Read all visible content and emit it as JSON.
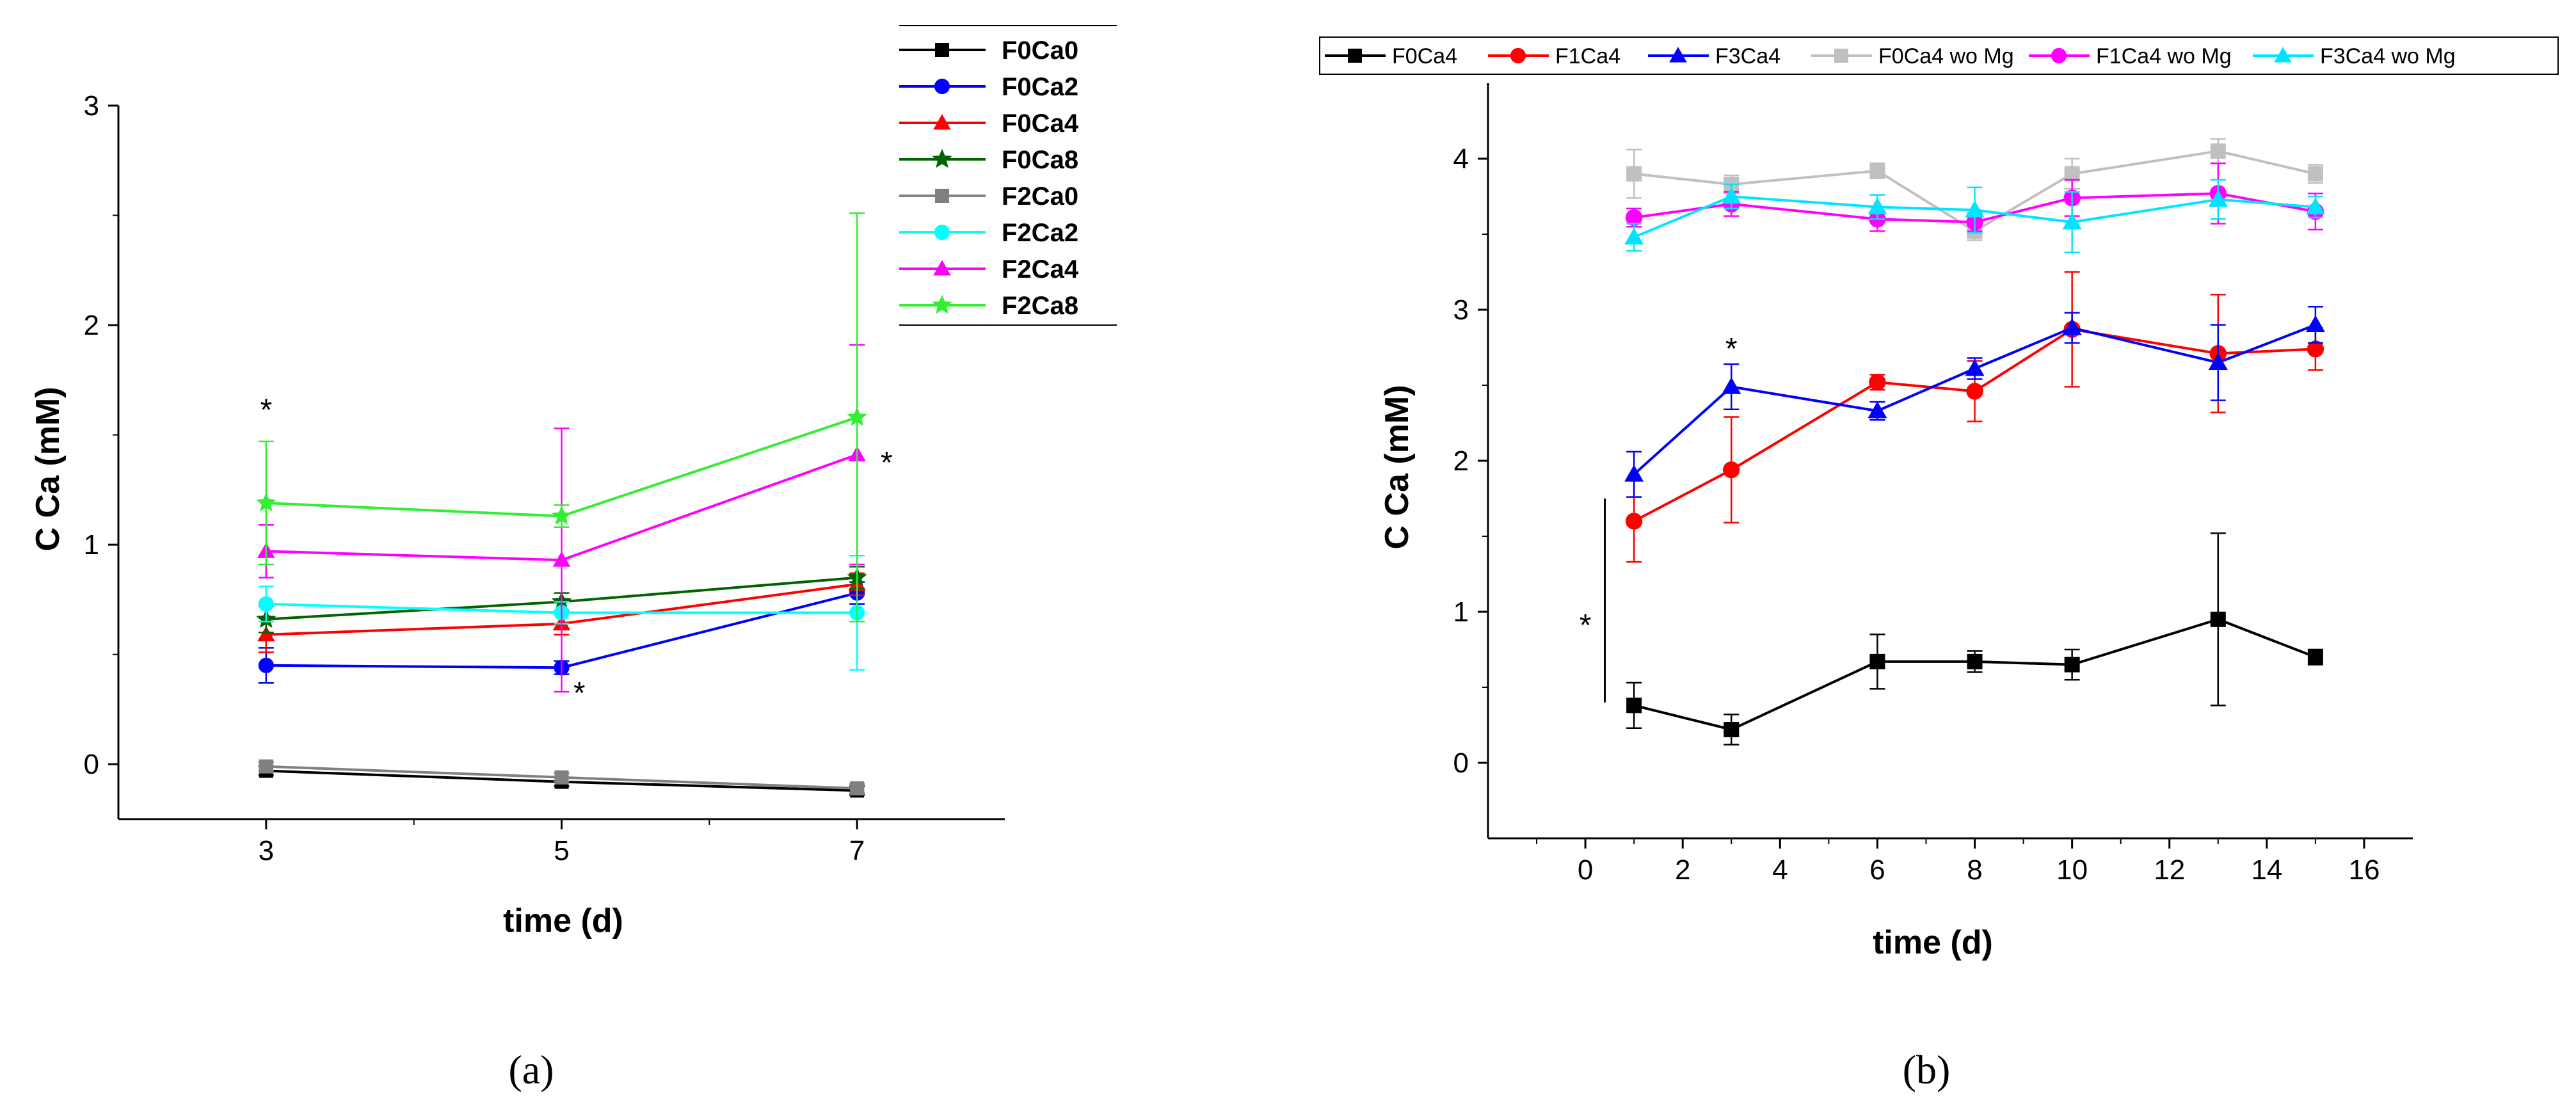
{
  "panels": [
    {
      "id": "a",
      "label": "(a)",
      "chart_data": {
        "type": "line",
        "xlabel": "time (d)",
        "ylabel": "C Ca (mM)",
        "xlim": [
          2,
          8
        ],
        "ylim": [
          -0.25,
          3
        ],
        "xticks": [
          3,
          5,
          7
        ],
        "yticks": [
          0,
          1,
          2,
          3
        ],
        "legend_position": "top-right",
        "series": [
          {
            "name": "F0Ca0",
            "color": "#000000",
            "marker": "square",
            "x": [
              3,
              5,
              7
            ],
            "y": [
              -0.03,
              -0.08,
              -0.12
            ],
            "err": [
              0.02,
              0.02,
              0.02
            ]
          },
          {
            "name": "F0Ca2",
            "color": "#0000ff",
            "marker": "circle",
            "x": [
              3,
              5,
              7
            ],
            "y": [
              0.45,
              0.44,
              0.78
            ],
            "err": [
              0.08,
              0.03,
              0.05
            ]
          },
          {
            "name": "F0Ca4",
            "color": "#ff0000",
            "marker": "triangle",
            "x": [
              3,
              5,
              7
            ],
            "y": [
              0.59,
              0.64,
              0.82
            ],
            "err": [
              0.08,
              0.05,
              0.05
            ]
          },
          {
            "name": "F0Ca8",
            "color": "#006400",
            "marker": "star",
            "x": [
              3,
              5,
              7
            ],
            "y": [
              0.66,
              0.74,
              0.85
            ],
            "err": [
              0.06,
              0.04,
              0.05
            ]
          },
          {
            "name": "F2Ca0",
            "color": "#808080",
            "marker": "square",
            "x": [
              3,
              5,
              7
            ],
            "y": [
              -0.01,
              -0.06,
              -0.11
            ],
            "err": [
              0.02,
              0.02,
              0.02
            ]
          },
          {
            "name": "F2Ca2",
            "color": "#00ffff",
            "marker": "circle",
            "x": [
              3,
              5,
              7
            ],
            "y": [
              0.73,
              0.69,
              0.69
            ],
            "err": [
              0.08,
              0.05,
              0.26
            ]
          },
          {
            "name": "F2Ca4",
            "color": "#ff00ff",
            "marker": "triangle",
            "x": [
              3,
              5,
              7
            ],
            "y": [
              0.97,
              0.93,
              1.41
            ],
            "err": [
              0.12,
              0.6,
              0.5
            ]
          },
          {
            "name": "F2Ca8",
            "color": "#33ee33",
            "marker": "star",
            "x": [
              3,
              5,
              7
            ],
            "y": [
              1.19,
              1.13,
              1.58
            ],
            "err": [
              0.28,
              0.05,
              0.93
            ]
          }
        ],
        "annotations": [
          {
            "text": "*",
            "x": 3,
            "y": 1.62
          },
          {
            "text": "*",
            "x": 5.12,
            "y": 0.33
          },
          {
            "text": "*",
            "x": 7.2,
            "y": 1.38
          }
        ]
      }
    },
    {
      "id": "b",
      "label": "(b)",
      "chart_data": {
        "type": "line",
        "xlabel": "time (d)",
        "ylabel": "C Ca (mM)",
        "xlim": [
          -2,
          17
        ],
        "ylim": [
          -0.5,
          4.5
        ],
        "xticks": [
          0,
          2,
          4,
          6,
          8,
          10,
          12,
          14,
          16
        ],
        "yticks": [
          0,
          1,
          2,
          3,
          4
        ],
        "legend_position": "top",
        "series": [
          {
            "name": "F0Ca4",
            "color": "#000000",
            "marker": "square",
            "x": [
              1,
              3,
              6,
              8,
              10,
              13,
              15
            ],
            "y": [
              0.38,
              0.22,
              0.67,
              0.67,
              0.65,
              0.95,
              0.7
            ],
            "err": [
              0.15,
              0.1,
              0.18,
              0.07,
              0.1,
              0.57,
              0.05
            ]
          },
          {
            "name": "F1Ca4",
            "color": "#ff0000",
            "marker": "circle",
            "x": [
              1,
              3,
              6,
              8,
              10,
              13,
              15
            ],
            "y": [
              1.6,
              1.94,
              2.52,
              2.46,
              2.87,
              2.71,
              2.74
            ],
            "err": [
              0.27,
              0.35,
              0.05,
              0.2,
              0.38,
              0.39,
              0.14
            ]
          },
          {
            "name": "F3Ca4",
            "color": "#0000ff",
            "marker": "triangle",
            "x": [
              1,
              3,
              6,
              8,
              10,
              13,
              15
            ],
            "y": [
              1.91,
              2.49,
              2.33,
              2.61,
              2.88,
              2.65,
              2.9
            ],
            "err": [
              0.15,
              0.15,
              0.06,
              0.07,
              0.1,
              0.25,
              0.12
            ]
          },
          {
            "name": "F0Ca4 wo Mg",
            "color": "#c0c0c0",
            "marker": "square",
            "x": [
              1,
              3,
              6,
              8,
              10,
              13,
              15
            ],
            "y": [
              3.9,
              3.83,
              3.92,
              3.52,
              3.9,
              4.05,
              3.9
            ],
            "err": [
              0.16,
              0.06,
              0.05,
              0.06,
              0.1,
              0.08,
              0.06
            ]
          },
          {
            "name": "F1Ca4 wo Mg",
            "color": "#ff00ff",
            "marker": "circle",
            "x": [
              1,
              3,
              6,
              8,
              10,
              13,
              15
            ],
            "y": [
              3.61,
              3.7,
              3.6,
              3.58,
              3.74,
              3.77,
              3.65
            ],
            "err": [
              0.06,
              0.08,
              0.08,
              0.06,
              0.12,
              0.2,
              0.12
            ]
          },
          {
            "name": "F3Ca4 wo Mg",
            "color": "#00e5ff",
            "marker": "triangle",
            "x": [
              1,
              3,
              6,
              8,
              10,
              13,
              15
            ],
            "y": [
              3.48,
              3.75,
              3.68,
              3.66,
              3.58,
              3.73,
              3.68
            ],
            "err": [
              0.09,
              0.08,
              0.08,
              0.15,
              0.2,
              0.13,
              0.07
            ]
          }
        ],
        "annotations": [
          {
            "text": "*",
            "x": 3,
            "y": 2.75
          },
          {
            "text": "*",
            "x": 0,
            "y": 0.92
          }
        ],
        "bracket": {
          "x": 0.4,
          "y_from": 0.4,
          "y_to": 1.75
        }
      }
    }
  ]
}
